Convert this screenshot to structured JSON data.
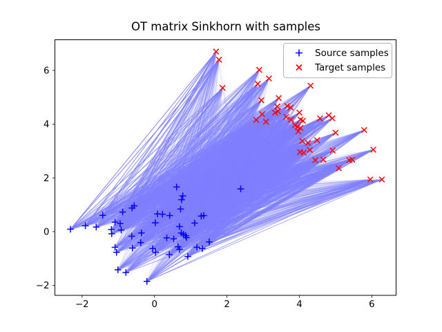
{
  "window": {
    "background": "#ffffff"
  },
  "legend": {
    "items": [
      {
        "label": "Source samples",
        "marker": "plus",
        "color": "#0000ff"
      },
      {
        "label": "Target samples",
        "marker": "x",
        "color": "#ff0000"
      }
    ]
  },
  "chart_data": {
    "type": "scatter",
    "title": "OT matrix Sinkhorn with samples",
    "xlabel": "",
    "ylabel": "",
    "xlim": [
      -2.75,
      6.67
    ],
    "ylim": [
      -2.37,
      7.14
    ],
    "x_ticks": [
      -2,
      0,
      2,
      4,
      6
    ],
    "y_ticks": [
      -2,
      0,
      2,
      4,
      6
    ],
    "grid": false,
    "legend_position": "upper right",
    "series": [
      {
        "name": "Source samples",
        "marker": "+",
        "color": "#0000ff",
        "points": [
          [
            -2.32,
            0.09
          ],
          [
            -1.91,
            0.22
          ],
          [
            -1.61,
            0.17
          ],
          [
            -1.43,
            0.61
          ],
          [
            -1.19,
            0.08
          ],
          [
            -1.18,
            -0.08
          ],
          [
            -1.09,
            0.35
          ],
          [
            -1.09,
            -0.58
          ],
          [
            -1.05,
            -0.77
          ],
          [
            -1.01,
            -1.42
          ],
          [
            -0.95,
            0.3
          ],
          [
            -0.92,
            0.06
          ],
          [
            -0.88,
            0.73
          ],
          [
            -0.79,
            -1.52
          ],
          [
            -0.62,
            0.88
          ],
          [
            -0.63,
            -0.17
          ],
          [
            -0.61,
            -0.61
          ],
          [
            -0.56,
            0.96
          ],
          [
            -0.38,
            -0.41
          ],
          [
            -0.36,
            -0.05
          ],
          [
            -0.21,
            -1.85
          ],
          [
            -0.05,
            -0.63
          ],
          [
            0.02,
            0.33
          ],
          [
            0.03,
            -0.77
          ],
          [
            0.08,
            0.66
          ],
          [
            0.22,
            0.65
          ],
          [
            0.34,
            -0.23
          ],
          [
            0.41,
            -0.86
          ],
          [
            0.42,
            0.6
          ],
          [
            0.53,
            -0.27
          ],
          [
            0.61,
            1.66
          ],
          [
            0.65,
            -0.56
          ],
          [
            0.69,
            -0.66
          ],
          [
            0.69,
            0.19
          ],
          [
            0.72,
            0.84
          ],
          [
            0.74,
            -0.05
          ],
          [
            0.75,
            1.19
          ],
          [
            0.78,
            1.33
          ],
          [
            0.8,
            -0.1
          ],
          [
            0.86,
            -0.15
          ],
          [
            0.88,
            -0.22
          ],
          [
            0.92,
            -0.92
          ],
          [
            1.11,
            0.32
          ],
          [
            1.17,
            -0.58
          ],
          [
            1.29,
            0.58
          ],
          [
            1.32,
            -0.63
          ],
          [
            1.36,
            0.6
          ],
          [
            1.51,
            -0.38
          ],
          [
            2.38,
            1.59
          ]
        ]
      },
      {
        "name": "Target samples",
        "marker": "x",
        "color": "#ff0000",
        "points": [
          [
            1.7,
            6.7
          ],
          [
            1.78,
            6.4
          ],
          [
            1.88,
            5.35
          ],
          [
            2.85,
            5.5
          ],
          [
            2.89,
            6.02
          ],
          [
            3.16,
            5.7
          ],
          [
            4.31,
            5.43
          ],
          [
            2.95,
            4.89
          ],
          [
            3.43,
            4.97
          ],
          [
            3.39,
            4.66
          ],
          [
            3.41,
            4.48
          ],
          [
            3.33,
            4.43
          ],
          [
            3.66,
            4.68
          ],
          [
            3.76,
            4.62
          ],
          [
            2.97,
            4.37
          ],
          [
            2.81,
            4.16
          ],
          [
            3.08,
            4.09
          ],
          [
            3.64,
            4.27
          ],
          [
            3.77,
            4.17
          ],
          [
            4.0,
            4.43
          ],
          [
            4.03,
            4.17
          ],
          [
            4.1,
            4.13
          ],
          [
            3.88,
            3.96
          ],
          [
            3.95,
            3.9
          ],
          [
            4.03,
            3.86
          ],
          [
            3.97,
            3.73
          ],
          [
            4.57,
            4.21
          ],
          [
            4.81,
            4.33
          ],
          [
            4.91,
            4.22
          ],
          [
            5.0,
            3.68
          ],
          [
            5.79,
            3.78
          ],
          [
            4.49,
            3.4
          ],
          [
            4.08,
            3.37
          ],
          [
            4.24,
            3.3
          ],
          [
            4.29,
            3.04
          ],
          [
            4.02,
            2.96
          ],
          [
            4.12,
            2.94
          ],
          [
            4.92,
            3.02
          ],
          [
            6.04,
            3.05
          ],
          [
            4.44,
            2.66
          ],
          [
            4.66,
            2.68
          ],
          [
            5.38,
            2.66
          ],
          [
            5.46,
            2.68
          ],
          [
            5.09,
            2.36
          ],
          [
            5.96,
            1.94
          ],
          [
            6.28,
            1.94
          ]
        ]
      }
    ],
    "ot_lines": {
      "description": "Sinkhorn optimal-transport coupling drawn as lines, alpha = G_ij / G_max",
      "color_rgb": [
        128,
        128,
        255
      ],
      "method": "sinkhorn",
      "reg": 0.1,
      "alpha_threshold": 0.02
    }
  }
}
